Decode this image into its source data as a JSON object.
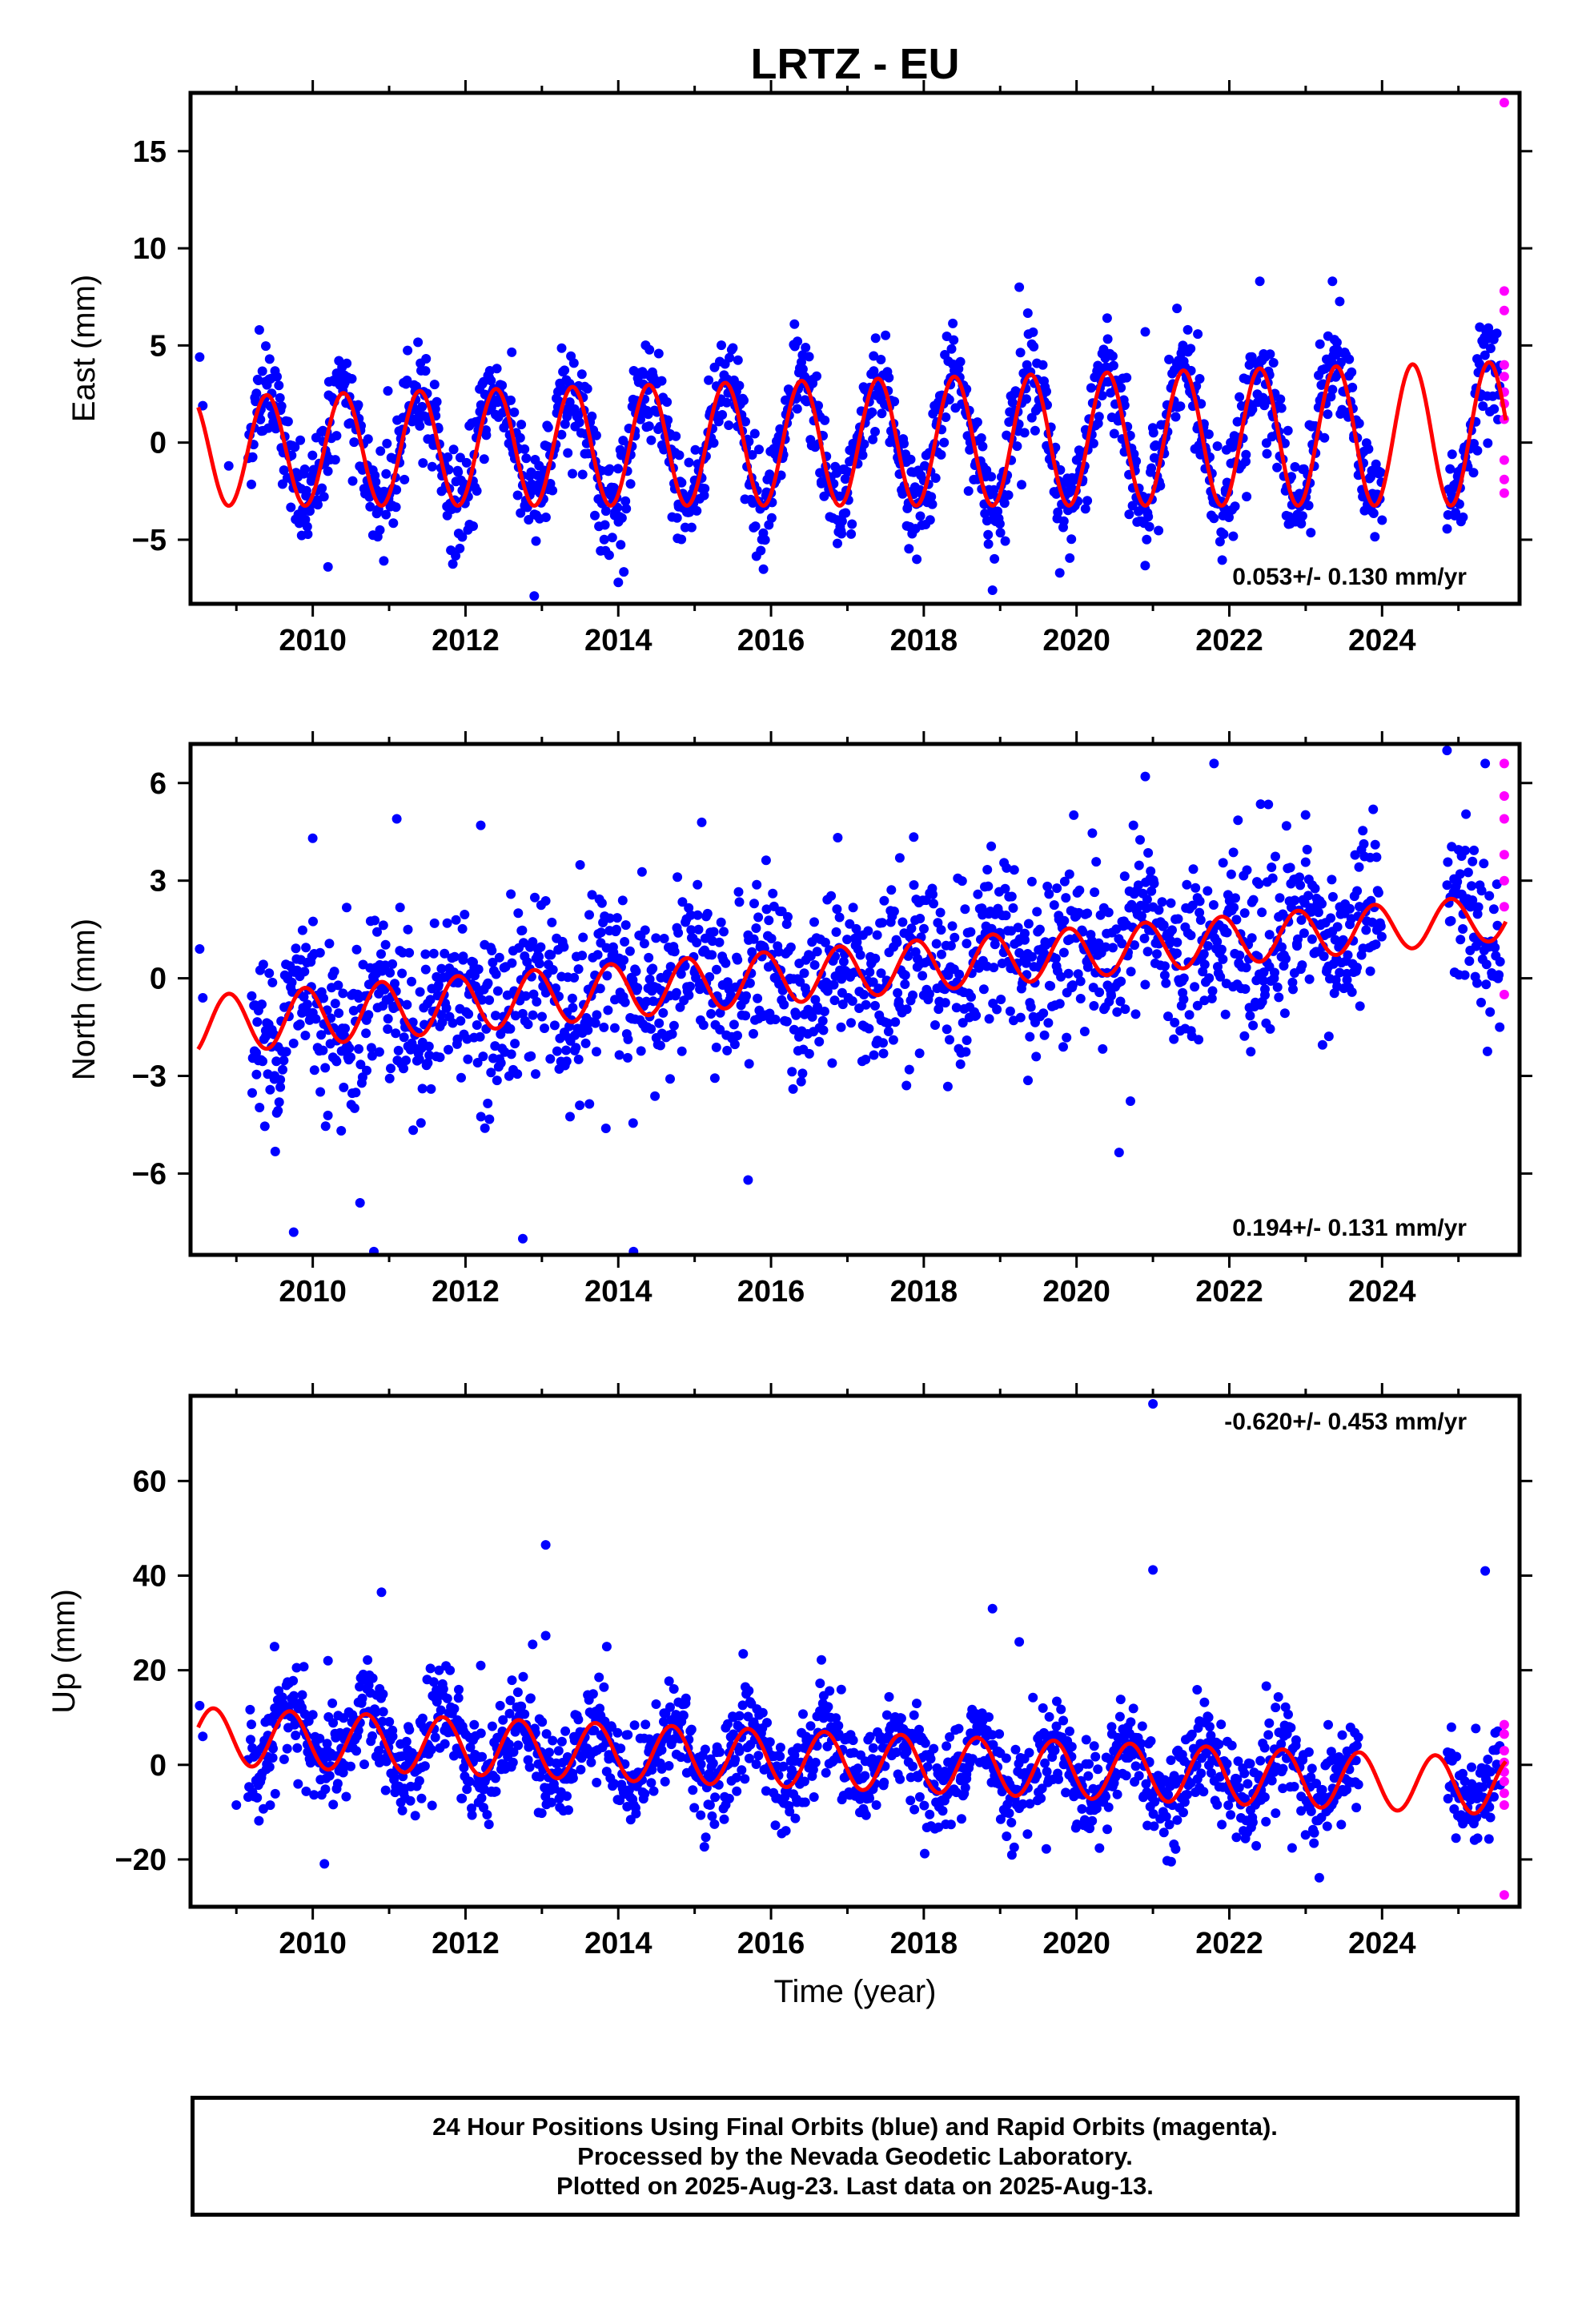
{
  "title": "LRTZ - EU",
  "footer": {
    "lines": [
      "24 Hour Positions Using Final Orbits (blue) and Rapid Orbits (magenta).",
      "Processed by the Nevada Geodetic Laboratory.",
      "Plotted on 2025-Aug-23. Last data on 2025-Aug-13."
    ]
  },
  "colors": {
    "final_orbits": "#0000ff",
    "rapid_orbits": "#ff00ff",
    "model": "#ff0000",
    "axis": "#000000"
  },
  "chart_data": [
    {
      "type": "scatter",
      "ylabel": "East (mm)",
      "rate": "0.053+/- 0.130 mm/yr",
      "rate_position": "bottom-right",
      "xlim": [
        2008.4,
        2025.8
      ],
      "ylim": [
        -8.3,
        18
      ],
      "xticks": [
        2010,
        2012,
        2014,
        2016,
        2018,
        2020,
        2022,
        2024
      ],
      "yticks": [
        -5,
        0,
        5,
        10,
        15
      ],
      "tick_labels_y": [
        "−5",
        "0",
        "5",
        "10",
        "15"
      ],
      "model": {
        "offset": 0.0,
        "trend": 0.053,
        "t0": 2017.0,
        "amplitude": [
          2.8,
          3.7
        ],
        "phase_peak": 0.4,
        "x_start": 2008.5,
        "x_end": 2025.62
      },
      "scatter": {
        "final_start": 2009.15,
        "final_end": 2025.55,
        "noise": 1.25,
        "gaps": [
          [
            2024.0,
            2024.85
          ]
        ],
        "early": [
          [
            2008.52,
            4.4
          ],
          [
            2008.56,
            1.9
          ],
          [
            2008.9,
            -1.2
          ]
        ]
      },
      "outliers": [
        [
          2009.3,
          5.8
        ],
        [
          2010.2,
          -6.4
        ],
        [
          2012.9,
          -7.9
        ],
        [
          2014.0,
          -7.2
        ],
        [
          2019.25,
          8.0
        ],
        [
          2018.9,
          -7.6
        ],
        [
          2022.4,
          8.3
        ],
        [
          2023.35,
          8.3
        ],
        [
          2020.9,
          5.7
        ]
      ],
      "rapid": [
        [
          2025.6,
          17.5
        ],
        [
          2025.6,
          7.8
        ],
        [
          2025.6,
          6.8
        ],
        [
          2025.6,
          4.0
        ],
        [
          2025.6,
          3.4
        ],
        [
          2025.6,
          2.6
        ],
        [
          2025.6,
          2.0
        ],
        [
          2025.6,
          1.2
        ],
        [
          2025.6,
          -0.9
        ],
        [
          2025.6,
          -1.9
        ],
        [
          2025.6,
          -2.6
        ]
      ]
    },
    {
      "type": "scatter",
      "ylabel": "North (mm)",
      "rate": "0.194+/- 0.131 mm/yr",
      "rate_position": "bottom-right",
      "xlim": [
        2008.4,
        2025.8
      ],
      "ylim": [
        -8.5,
        7.2
      ],
      "xticks": [
        2010,
        2012,
        2014,
        2016,
        2018,
        2020,
        2022,
        2024
      ],
      "yticks": [
        -6,
        -3,
        0,
        3,
        6
      ],
      "tick_labels_y": [
        "−6",
        "−3",
        "0",
        "3",
        "6"
      ],
      "model": {
        "offset": 0.2,
        "trend": 0.194,
        "t0": 2017.0,
        "amplitude": [
          0.9,
          0.7
        ],
        "phase_peak": 0.9,
        "x_start": 2008.5,
        "x_end": 2025.62
      },
      "scatter": {
        "final_start": 2009.2,
        "final_end": 2025.55,
        "noise": 1.3,
        "gaps": [
          [
            2024.0,
            2024.85
          ]
        ],
        "early": [
          [
            2008.52,
            0.9
          ],
          [
            2008.56,
            -0.6
          ]
        ]
      },
      "outliers": [
        [
          2011.1,
          4.9
        ],
        [
          2012.2,
          4.7
        ],
        [
          2010.0,
          4.3
        ],
        [
          2009.75,
          -7.8
        ],
        [
          2010.8,
          -8.4
        ],
        [
          2012.75,
          -8.0
        ],
        [
          2014.2,
          -8.4
        ],
        [
          2015.7,
          -6.2
        ],
        [
          2020.9,
          6.2
        ],
        [
          2021.8,
          6.6
        ],
        [
          2024.85,
          7.0
        ],
        [
          2025.35,
          6.6
        ]
      ],
      "rapid": [
        [
          2025.6,
          6.6
        ],
        [
          2025.6,
          5.6
        ],
        [
          2025.6,
          4.9
        ],
        [
          2025.6,
          3.8
        ],
        [
          2025.6,
          3.0
        ],
        [
          2025.6,
          2.2
        ],
        [
          2025.6,
          -0.5
        ]
      ]
    },
    {
      "type": "scatter",
      "ylabel": "Up (mm)",
      "xlabel": "Time (year)",
      "rate": "-0.620+/- 0.453 mm/yr",
      "rate_position": "top-right",
      "xlim": [
        2008.4,
        2025.8
      ],
      "ylim": [
        -30,
        78
      ],
      "xticks": [
        2010,
        2012,
        2014,
        2016,
        2018,
        2020,
        2022,
        2024
      ],
      "yticks": [
        -20,
        0,
        20,
        40,
        60
      ],
      "tick_labels_y": [
        "−20",
        "0",
        "20",
        "40",
        "60"
      ],
      "model": {
        "offset": 0.8,
        "trend": -0.62,
        "t0": 2017.0,
        "amplitude": [
          6.0,
          6.0
        ],
        "phase_peak": 0.7,
        "x_start": 2008.5,
        "x_end": 2025.62
      },
      "scatter": {
        "final_start": 2009.15,
        "final_end": 2025.55,
        "noise": 5.0,
        "gaps": [
          [
            2023.7,
            2024.85
          ]
        ],
        "early": [
          [
            2008.52,
            12.5
          ],
          [
            2008.56,
            6.0
          ],
          [
            2009.0,
            -8.5
          ]
        ]
      },
      "outliers": [
        [
          2009.5,
          25.0
        ],
        [
          2010.9,
          36.5
        ],
        [
          2013.05,
          46.5
        ],
        [
          2013.05,
          27.3
        ],
        [
          2013.85,
          25.0
        ],
        [
          2018.9,
          33.0
        ],
        [
          2019.25,
          26.0
        ],
        [
          2021.0,
          41.2
        ],
        [
          2025.35,
          41.0
        ],
        [
          2021.0,
          76.3
        ],
        [
          2010.2,
          22.0
        ],
        [
          2012.2,
          21.0
        ]
      ],
      "rapid": [
        [
          2025.6,
          8.5
        ],
        [
          2025.6,
          6.5
        ],
        [
          2025.6,
          3.0
        ],
        [
          2025.6,
          0.5
        ],
        [
          2025.6,
          -1.5
        ],
        [
          2025.6,
          -3.5
        ],
        [
          2025.6,
          -6.0
        ],
        [
          2025.6,
          -8.5
        ],
        [
          2025.6,
          -27.5
        ]
      ]
    }
  ]
}
